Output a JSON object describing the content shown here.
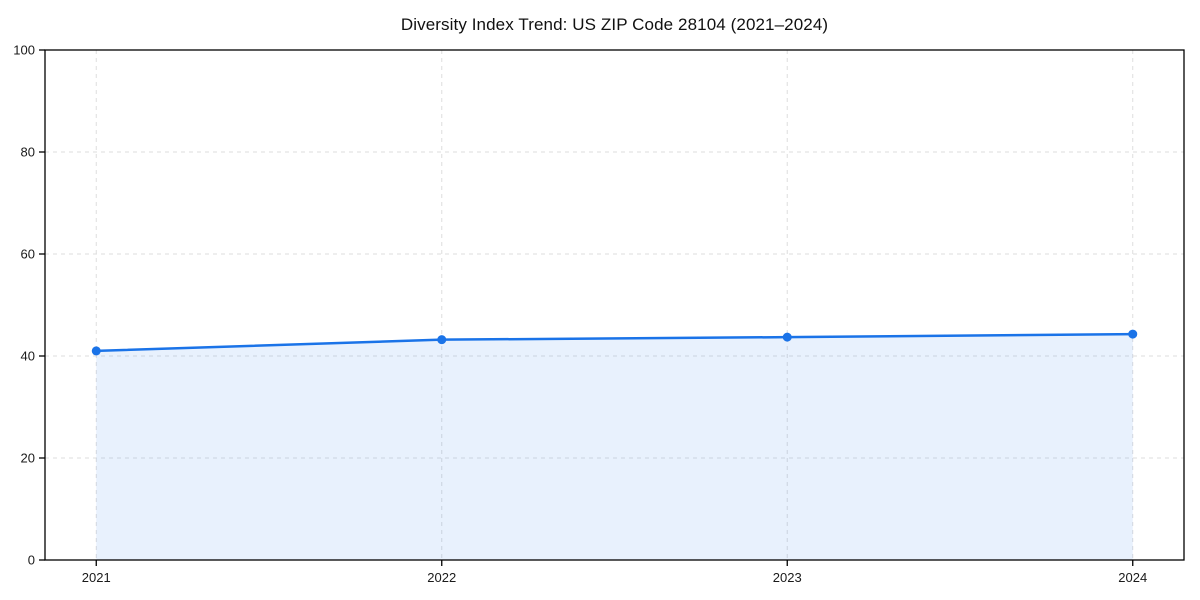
{
  "figure": {
    "background_color": "#ffffff"
  },
  "chart_data": {
    "type": "area",
    "title": "Diversity Index Trend: US ZIP Code 28104 (2021–2024)",
    "categories": [
      "2021",
      "2022",
      "2023",
      "2024"
    ],
    "series": [
      {
        "name": "Diversity Index",
        "values": [
          41.0,
          43.2,
          43.7,
          44.3
        ]
      }
    ],
    "xlabel": "",
    "ylabel": "",
    "ylim": [
      0,
      100
    ],
    "yticks": [
      0,
      20,
      40,
      60,
      80,
      100
    ],
    "grid": "dashed",
    "legend_position": "none",
    "style": {
      "line_color": "#1a73e8",
      "fill_color": "rgba(26,115,232,0.10)",
      "marker": "circle",
      "marker_radius": 4.5,
      "line_width": 2.5,
      "grid_color": "#dedede",
      "axis_color": "#000000",
      "tick_label_color": "#1a1a1a",
      "tick_font_size": 13,
      "title_font_size": 17
    }
  }
}
